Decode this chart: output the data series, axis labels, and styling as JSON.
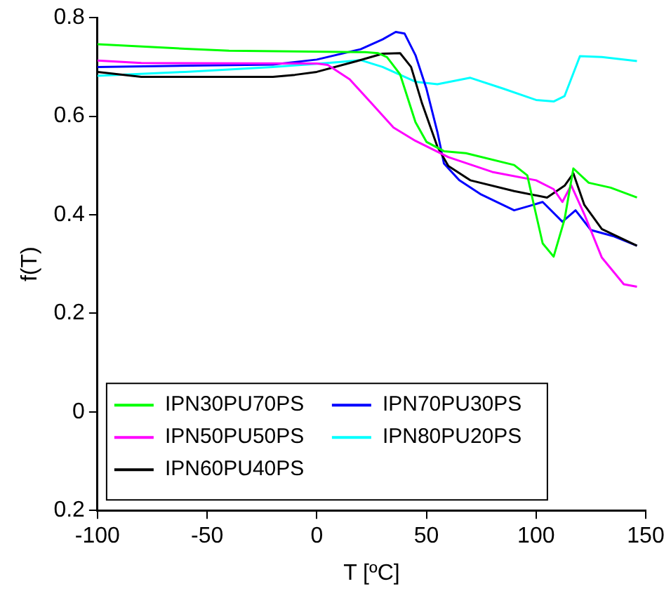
{
  "chart_data": {
    "type": "line",
    "xlabel": "T [ºC]",
    "ylabel": "f(T)",
    "xlim": [
      -100,
      150
    ],
    "xticks": [
      -100,
      -50,
      0,
      50,
      100,
      150
    ],
    "ylim": [
      -0.2,
      0.8
    ],
    "yticks": [
      {
        "value": -0.2,
        "label": "0.2"
      },
      0,
      0.2,
      0.4,
      0.6,
      0.8
    ],
    "grid": false,
    "legend": "bottom left",
    "marker": "none",
    "line_style": "solid",
    "series": [
      {
        "name": "IPN30PU70PS",
        "color": "#00ff00",
        "x": [
          -100,
          -60,
          -40,
          22,
          28,
          32,
          38,
          45,
          50,
          58,
          68,
          90,
          96,
          99,
          103,
          108,
          113,
          117,
          124,
          134,
          146
        ],
        "values": [
          0.746,
          0.737,
          0.733,
          0.73,
          0.728,
          0.72,
          0.685,
          0.588,
          0.548,
          0.529,
          0.525,
          0.501,
          0.48,
          0.42,
          0.342,
          0.315,
          0.391,
          0.494,
          0.465,
          0.455,
          0.435
        ]
      },
      {
        "name": "IPN50PU50PS",
        "color": "#ff00ff",
        "x": [
          -100,
          -80,
          0,
          5,
          15,
          25,
          35,
          45,
          60,
          80,
          100,
          108,
          112,
          116,
          122,
          130,
          140,
          146
        ],
        "values": [
          0.713,
          0.708,
          0.707,
          0.704,
          0.675,
          0.626,
          0.577,
          0.55,
          0.517,
          0.487,
          0.47,
          0.452,
          0.426,
          0.46,
          0.401,
          0.313,
          0.259,
          0.254
        ]
      },
      {
        "name": "IPN60PU40PS",
        "color": "#000000",
        "x": [
          -100,
          -80,
          -20,
          -10,
          0,
          20,
          30,
          38,
          43,
          48,
          55,
          60,
          70,
          90,
          105,
          113,
          117,
          122,
          130,
          146
        ],
        "values": [
          0.69,
          0.68,
          0.68,
          0.684,
          0.69,
          0.714,
          0.727,
          0.728,
          0.7,
          0.626,
          0.538,
          0.499,
          0.47,
          0.448,
          0.435,
          0.459,
          0.484,
          0.42,
          0.371,
          0.337
        ]
      },
      {
        "name": "IPN70PU30PS",
        "color": "#0000ff",
        "x": [
          -100,
          -20,
          0,
          20,
          30,
          36,
          40,
          45,
          50,
          55,
          58,
          65,
          75,
          90,
          97,
          103,
          112,
          118,
          125,
          135,
          146
        ],
        "values": [
          0.7,
          0.705,
          0.715,
          0.736,
          0.756,
          0.771,
          0.768,
          0.724,
          0.656,
          0.568,
          0.504,
          0.47,
          0.441,
          0.409,
          0.418,
          0.426,
          0.386,
          0.409,
          0.369,
          0.357,
          0.337
        ]
      },
      {
        "name": "IPN80PU20PS",
        "color": "#00ffff",
        "x": [
          -100,
          -60,
          -20,
          10,
          20,
          30,
          45,
          55,
          70,
          85,
          100,
          108,
          113,
          120,
          130,
          146
        ],
        "values": [
          0.682,
          0.69,
          0.7,
          0.71,
          0.714,
          0.7,
          0.67,
          0.665,
          0.678,
          0.656,
          0.633,
          0.63,
          0.641,
          0.722,
          0.72,
          0.712
        ]
      }
    ]
  }
}
